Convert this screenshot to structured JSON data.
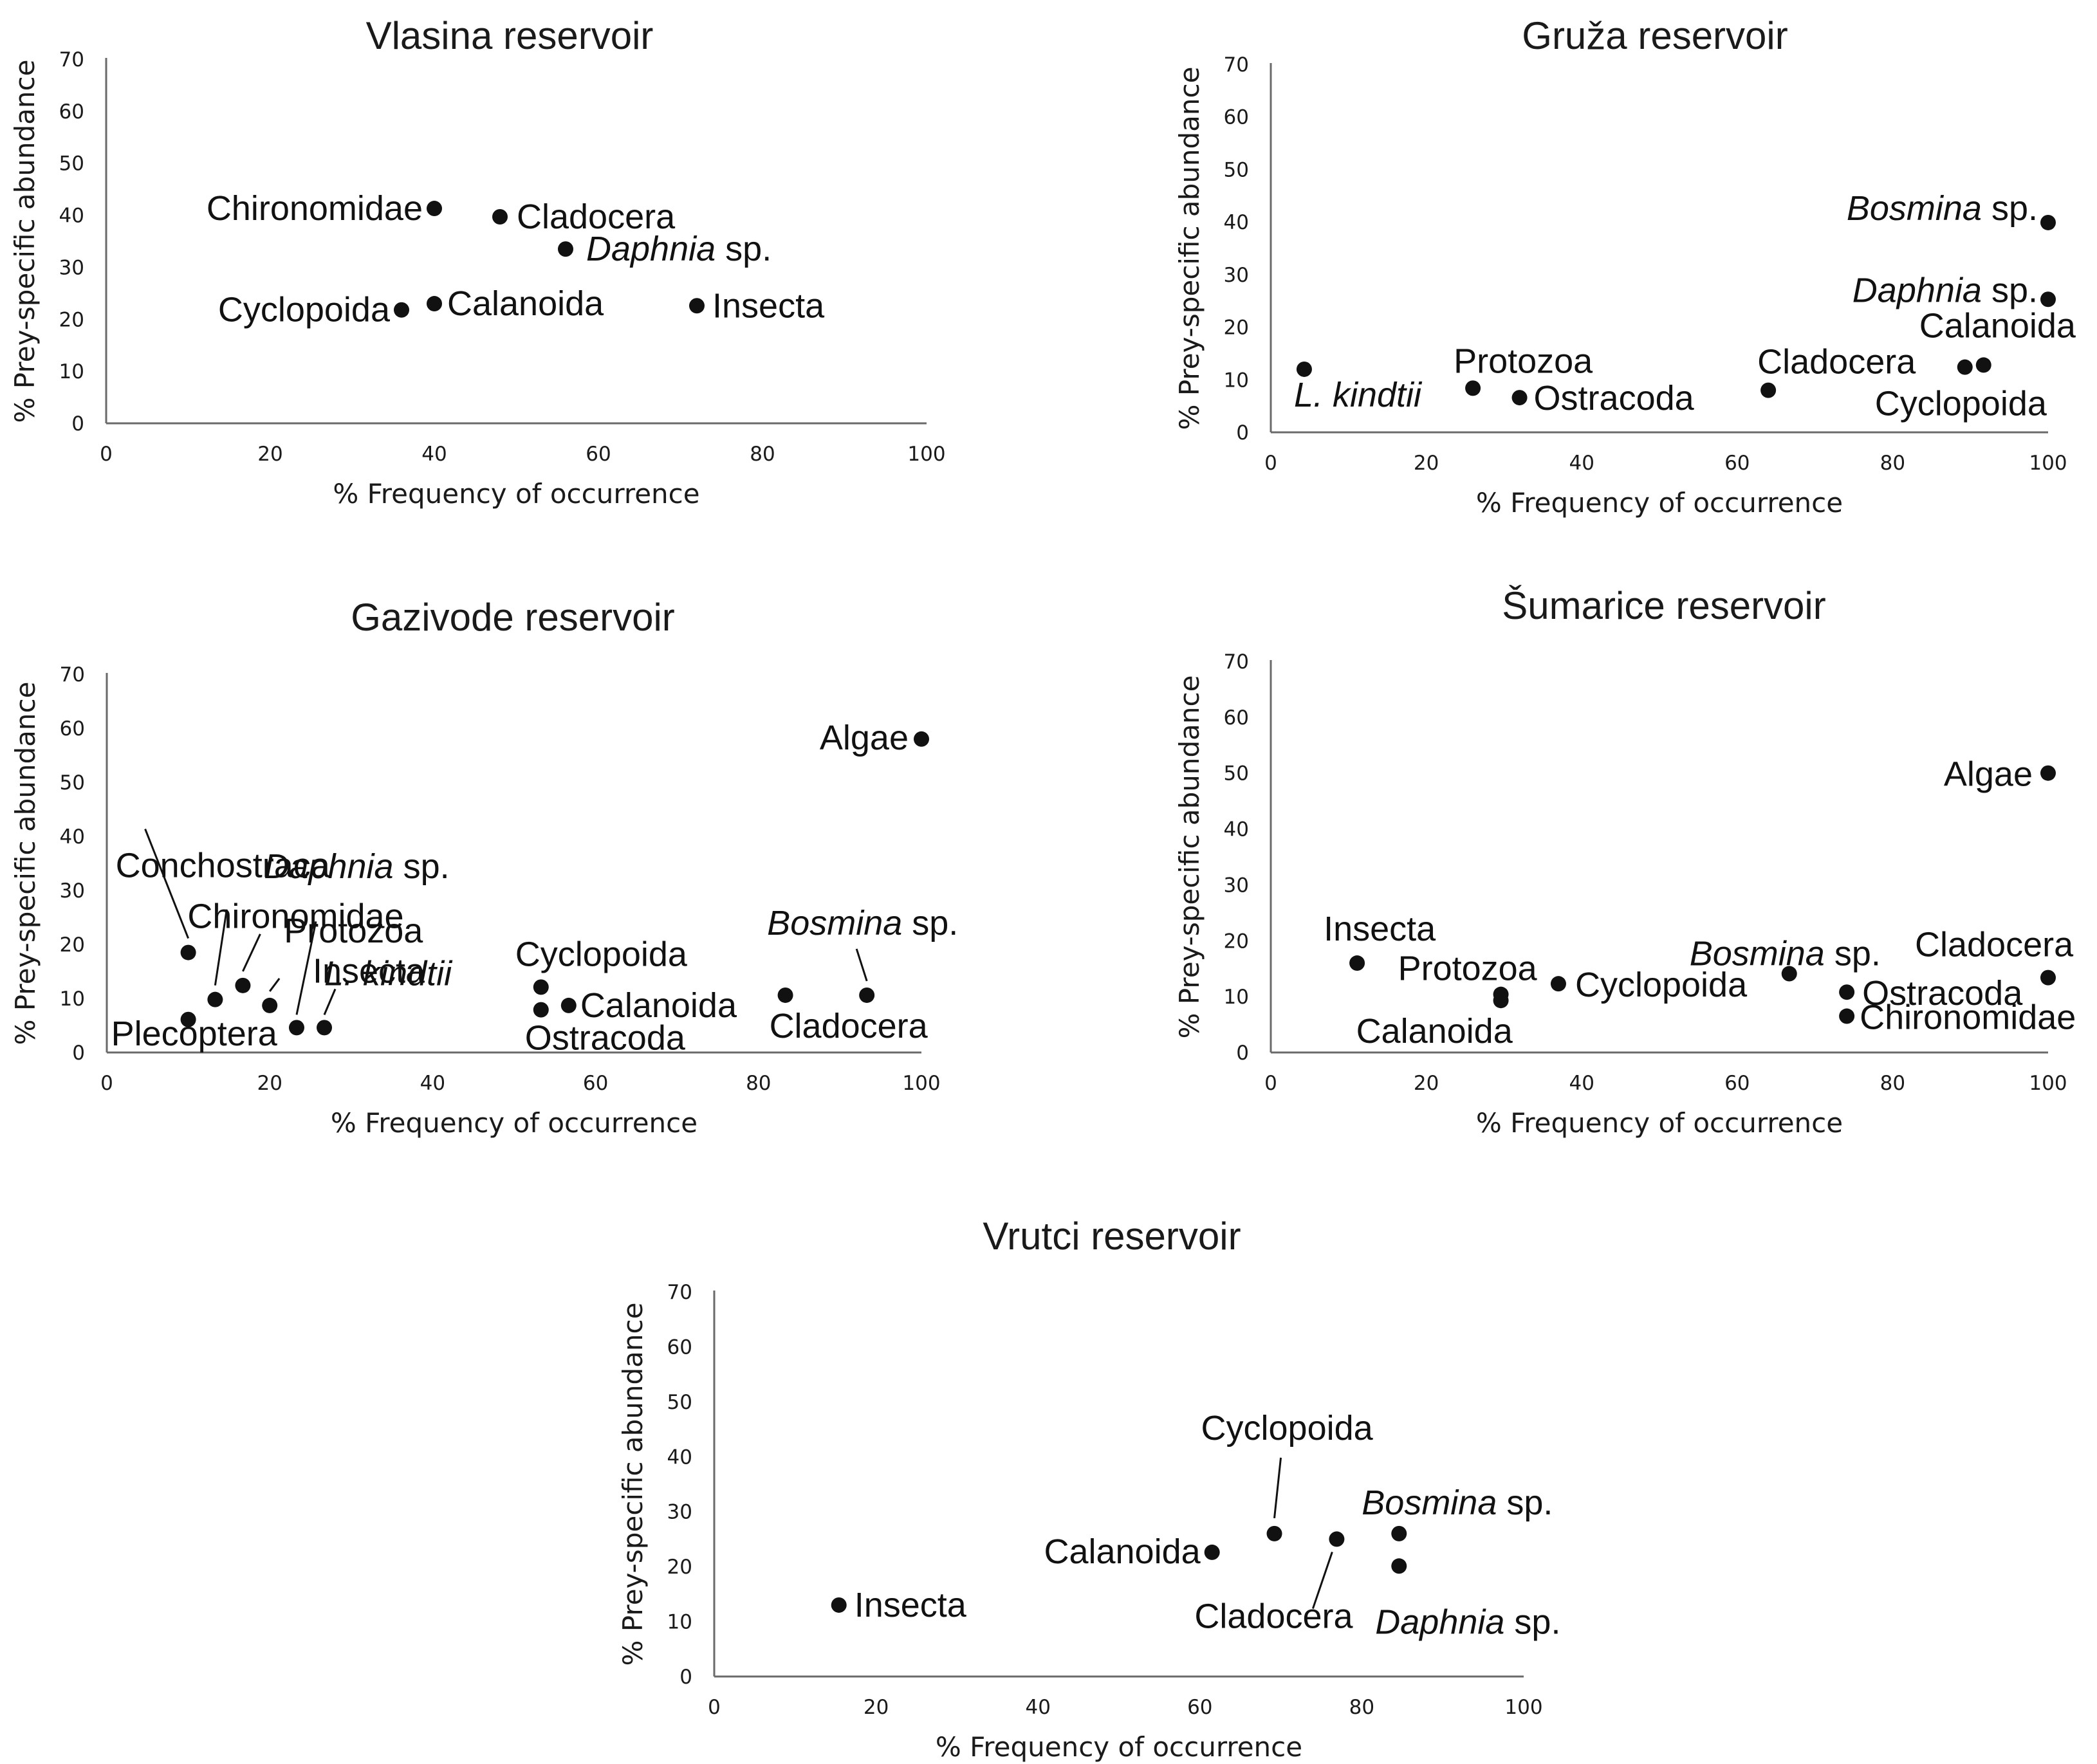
{
  "chart_data": [
    {
      "type": "scatter",
      "title": "Vlasina reservoir",
      "xlabel": "% Frequency of occurrence",
      "ylabel": "% Prey-specific abundance",
      "xlim": [
        0,
        100
      ],
      "ylim": [
        0,
        70
      ],
      "xticks": [
        "0",
        "20",
        "40",
        "60",
        "80",
        "100"
      ],
      "yticks": [
        "0",
        "10",
        "20",
        "30",
        "40",
        "50",
        "60",
        "70"
      ],
      "points": [
        {
          "label": "Chironomidae",
          "italic": "",
          "x": 40,
          "y": 41.3
        },
        {
          "label": "Cladocera",
          "italic": "",
          "x": 48,
          "y": 39.7
        },
        {
          "label": "sp.",
          "italic": "Daphnia",
          "x": 56,
          "y": 33.5
        },
        {
          "label": "Cyclopoida",
          "italic": "",
          "x": 36,
          "y": 21.8
        },
        {
          "label": "Calanoida",
          "italic": "",
          "x": 40,
          "y": 23
        },
        {
          "label": "Insecta",
          "italic": "",
          "x": 72,
          "y": 22.6
        }
      ]
    },
    {
      "type": "scatter",
      "title": "Gruža reservoir",
      "xlabel": "% Frequency of occurrence",
      "ylabel": "% Prey-specific abundance",
      "xlim": [
        0,
        100
      ],
      "ylim": [
        0,
        70
      ],
      "xticks": [
        "0",
        "20",
        "40",
        "60",
        "80",
        "100"
      ],
      "yticks": [
        "0",
        "10",
        "20",
        "30",
        "40",
        "50",
        "60",
        "70"
      ],
      "points": [
        {
          "label": "sp.",
          "italic": "Bosmina",
          "x": 100,
          "y": 39.9
        },
        {
          "label": "sp.",
          "italic": "Daphnia",
          "x": 100,
          "y": 25.3
        },
        {
          "label": "Calanoida",
          "italic": "",
          "x": 91.7,
          "y": 12.8
        },
        {
          "label": "Cyclopoida",
          "italic": "",
          "x": 89.3,
          "y": 12.4
        },
        {
          "label": "Cladocera",
          "italic": "",
          "x": 64,
          "y": 8
        },
        {
          "label": "Ostracoda",
          "italic": "",
          "x": 32,
          "y": 6.6
        },
        {
          "label": "Protozoa",
          "italic": "",
          "x": 26,
          "y": 8.4
        },
        {
          "label": "",
          "italic": "L. kindtii",
          "x": 4.3,
          "y": 12
        }
      ]
    },
    {
      "type": "scatter",
      "title": "Gazivode reservoir",
      "xlabel": "% Frequency of occurrence",
      "ylabel": "% Prey-specific abundance",
      "xlim": [
        0,
        100
      ],
      "ylim": [
        0,
        70
      ],
      "xticks": [
        "0",
        "20",
        "40",
        "60",
        "80",
        "100"
      ],
      "yticks": [
        "0",
        "10",
        "20",
        "30",
        "40",
        "50",
        "60",
        "70"
      ],
      "points": [
        {
          "label": "Algae",
          "italic": "",
          "x": 100,
          "y": 58
        },
        {
          "label": "Conchostraca",
          "italic": "",
          "x": 10,
          "y": 18.5
        },
        {
          "label": "Chironomidae",
          "italic": "",
          "x": 13.3,
          "y": 9.8
        },
        {
          "label": "sp.",
          "italic": "Daphnia",
          "x": 16.7,
          "y": 12.4
        },
        {
          "label": "Protozoa",
          "italic": "",
          "x": 20,
          "y": 8.7
        },
        {
          "label": "Insecta",
          "italic": "",
          "x": 23.3,
          "y": 4.6
        },
        {
          "label": "",
          "italic": "L. kindtii",
          "x": 26.7,
          "y": 4.6
        },
        {
          "label": "Plecoptera",
          "italic": "",
          "x": 10,
          "y": 6.1
        },
        {
          "label": "Cyclopoida",
          "italic": "",
          "x": 53.3,
          "y": 12.1
        },
        {
          "label": "Calanoida",
          "italic": "",
          "x": 56.7,
          "y": 8.7
        },
        {
          "label": "Ostracoda",
          "italic": "",
          "x": 53.3,
          "y": 7.9
        },
        {
          "label": "sp.",
          "italic": "Bosmina",
          "x": 93.3,
          "y": 10.6
        },
        {
          "label": "Cladocera",
          "italic": "",
          "x": 83.3,
          "y": 10.6
        }
      ]
    },
    {
      "type": "scatter",
      "title": "Šumarice reservoir",
      "xlabel": "% Frequency of occurrence",
      "ylabel": "% Prey-specific abundance",
      "xlim": [
        0,
        100
      ],
      "ylim": [
        0,
        70
      ],
      "xticks": [
        "0",
        "20",
        "40",
        "60",
        "80",
        "100"
      ],
      "yticks": [
        "0",
        "10",
        "20",
        "30",
        "40",
        "50",
        "60",
        "70"
      ],
      "points": [
        {
          "label": "Algae",
          "italic": "",
          "x": 100,
          "y": 50
        },
        {
          "label": "Insecta",
          "italic": "",
          "x": 11.1,
          "y": 16
        },
        {
          "label": "Protozoa",
          "italic": "",
          "x": 29.6,
          "y": 10.4
        },
        {
          "label": "Calanoida",
          "italic": "",
          "x": 29.6,
          "y": 9.3
        },
        {
          "label": "Cyclopoida",
          "italic": "",
          "x": 37,
          "y": 12.3
        },
        {
          "label": "sp.",
          "italic": "Bosmina",
          "x": 66.7,
          "y": 14.1
        },
        {
          "label": "Cladocera",
          "italic": "",
          "x": 100,
          "y": 13.4
        },
        {
          "label": "Ostracoda",
          "italic": "",
          "x": 74.1,
          "y": 10.8
        },
        {
          "label": "Chironomidae",
          "italic": "",
          "x": 74.1,
          "y": 6.5
        }
      ]
    },
    {
      "type": "scatter",
      "title": "Vrutci reservoir",
      "xlabel": "% Frequency of occurrence",
      "ylabel": "% Prey-specific abundance",
      "xlim": [
        0,
        100
      ],
      "ylim": [
        0,
        70
      ],
      "xticks": [
        "0",
        "20",
        "40",
        "60",
        "80",
        "100"
      ],
      "yticks": [
        "0",
        "10",
        "20",
        "30",
        "40",
        "50",
        "60",
        "70"
      ],
      "points": [
        {
          "label": "Insecta",
          "italic": "",
          "x": 15.4,
          "y": 13
        },
        {
          "label": "Calanoida",
          "italic": "",
          "x": 61.5,
          "y": 22.6
        },
        {
          "label": "Cyclopoida",
          "italic": "",
          "x": 69.2,
          "y": 26
        },
        {
          "label": "Cladocera",
          "italic": "",
          "x": 76.9,
          "y": 25
        },
        {
          "label": "sp.",
          "italic": "Bosmina",
          "x": 84.6,
          "y": 26
        },
        {
          "label": "sp.",
          "italic": "Daphnia",
          "x": 84.6,
          "y": 20.1
        }
      ]
    }
  ]
}
